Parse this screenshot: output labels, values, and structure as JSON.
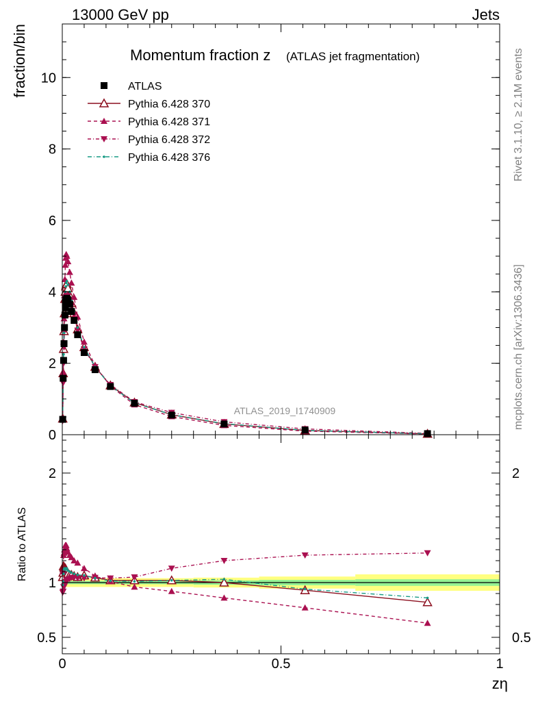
{
  "header": {
    "left_label": "13000 GeV pp",
    "right_label": "Jets"
  },
  "side_labels": {
    "rivet": "Rivet 3.1.10, ≥ 2.1M events",
    "source": "mcplots.cern.ch [arXiv:1306.3436]"
  },
  "chart_data": [
    {
      "type": "line",
      "title": "Momentum fraction z",
      "title_suffix": "(ATLAS jet fragmentation)",
      "watermark": "ATLAS_2019_I1740909",
      "ylabel": "fraction/bin",
      "xlabel": "zη",
      "xlim": [
        0,
        1
      ],
      "ylim": [
        0,
        11.5
      ],
      "y_ticks": [
        "0",
        "2",
        "4",
        "6",
        "8",
        "10"
      ],
      "x_ticks": [
        "0",
        "0.5",
        "1"
      ],
      "legend_position": "top-left",
      "colors": {
        "data": "#000000",
        "p370": "#8b0e1e",
        "p371": "#aa1050",
        "p372": "#aa1050",
        "p376": "#169a84",
        "band_inner": "#94f294",
        "band_outer": "#ffff80"
      },
      "x": [
        0.001,
        0.002,
        0.003,
        0.004,
        0.005,
        0.006,
        0.007,
        0.008,
        0.009,
        0.0105,
        0.013,
        0.017,
        0.021,
        0.027,
        0.035,
        0.05,
        0.075,
        0.11,
        0.165,
        0.25,
        0.37,
        0.555,
        0.835
      ],
      "series": [
        {
          "name": "ATLAS",
          "style": "data",
          "values": [
            0.43,
            1.58,
            2.08,
            2.55,
            3.0,
            3.35,
            3.55,
            3.7,
            3.78,
            3.82,
            3.78,
            3.65,
            3.45,
            3.2,
            2.8,
            2.3,
            1.82,
            1.35,
            0.88,
            0.55,
            0.3,
            0.13,
            0.03
          ],
          "errors": [
            0.02,
            0.05,
            0.06,
            0.06,
            0.07,
            0.07,
            0.07,
            0.08,
            0.08,
            0.08,
            0.08,
            0.07,
            0.07,
            0.06,
            0.06,
            0.05,
            0.04,
            0.03,
            0.02,
            0.015,
            0.01,
            0.005,
            0.003
          ]
        },
        {
          "name": "Pythia 6.428 370",
          "style": "p370",
          "values": [
            0.45,
            1.72,
            2.4,
            2.9,
            3.4,
            3.8,
            4.0,
            4.15,
            4.2,
            4.22,
            4.1,
            3.9,
            3.68,
            3.4,
            2.95,
            2.45,
            1.9,
            1.38,
            0.9,
            0.56,
            0.3,
            0.12,
            0.024
          ]
        },
        {
          "name": "Pythia 6.428 371",
          "style": "p371",
          "values": [
            0.47,
            1.75,
            2.6,
            3.25,
            3.9,
            4.35,
            4.75,
            4.95,
            5.05,
            5.0,
            4.85,
            4.55,
            4.25,
            3.85,
            3.3,
            2.6,
            1.93,
            1.36,
            0.84,
            0.51,
            0.26,
            0.1,
            0.019
          ]
        },
        {
          "name": "Pythia 6.428 372",
          "style": "p372",
          "values": [
            0.39,
            1.45,
            2.0,
            2.45,
            2.9,
            3.3,
            3.55,
            3.72,
            3.82,
            3.9,
            3.88,
            3.78,
            3.6,
            3.35,
            2.92,
            2.4,
            1.9,
            1.4,
            0.92,
            0.62,
            0.36,
            0.162,
            0.038
          ]
        },
        {
          "name": "Pythia 6.428 376",
          "style": "p376",
          "values": [
            0.42,
            1.6,
            2.25,
            2.85,
            3.4,
            3.75,
            4.0,
            4.15,
            4.25,
            4.3,
            4.2,
            4.0,
            3.75,
            3.45,
            3.0,
            2.45,
            1.9,
            1.37,
            0.89,
            0.56,
            0.31,
            0.122,
            0.026
          ]
        }
      ]
    },
    {
      "type": "line",
      "ylabel": "Ratio to ATLAS",
      "xlabel": "zη",
      "xlim": [
        0,
        1
      ],
      "ylim": [
        0.35,
        2.35
      ],
      "y_ticks": [
        "0.5",
        "1",
        "2"
      ],
      "x_ticks": [
        "0",
        "0.5",
        "1"
      ],
      "band_edges": [
        0,
        0.3,
        0.45,
        0.67,
        1.0
      ],
      "band_inner": [
        0.015,
        0.02,
        0.025,
        0.03
      ],
      "band_outer": [
        0.04,
        0.045,
        0.055,
        0.075
      ],
      "series": [
        {
          "name": "Pythia 6.428 370",
          "values": [
            1.05,
            1.09,
            1.15,
            1.14,
            1.13,
            1.13,
            1.13,
            1.12,
            1.11,
            1.1,
            1.08,
            1.07,
            1.07,
            1.06,
            1.05,
            1.065,
            1.045,
            1.02,
            1.02,
            1.02,
            1.0,
            0.93,
            0.82
          ]
        },
        {
          "name": "Pythia 6.428 371",
          "values": [
            1.1,
            1.11,
            1.25,
            1.27,
            1.3,
            1.3,
            1.34,
            1.34,
            1.34,
            1.31,
            1.28,
            1.25,
            1.23,
            1.2,
            1.18,
            1.13,
            1.06,
            1.01,
            0.96,
            0.92,
            0.86,
            0.77,
            0.63
          ]
        },
        {
          "name": "Pythia 6.428 372",
          "values": [
            0.91,
            0.92,
            0.96,
            0.96,
            0.97,
            0.99,
            1.0,
            1.005,
            1.01,
            1.02,
            1.03,
            1.035,
            1.045,
            1.045,
            1.04,
            1.04,
            1.045,
            1.04,
            1.05,
            1.13,
            1.2,
            1.25,
            1.27
          ]
        },
        {
          "name": "Pythia 6.428 376",
          "values": [
            0.98,
            1.01,
            1.08,
            1.12,
            1.13,
            1.12,
            1.13,
            1.12,
            1.12,
            1.13,
            1.11,
            1.1,
            1.09,
            1.08,
            1.07,
            1.065,
            1.04,
            1.015,
            1.01,
            1.02,
            1.03,
            0.94,
            0.86
          ]
        }
      ]
    }
  ]
}
